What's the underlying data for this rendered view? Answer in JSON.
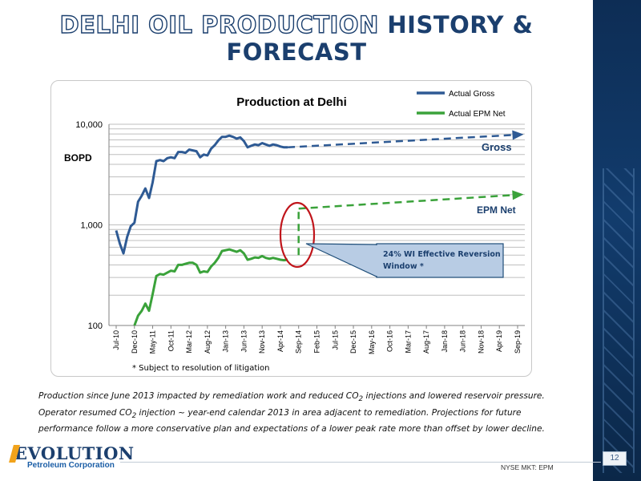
{
  "slide": {
    "title_part1": "DELHI OIL PRODUCTION",
    "title_part2": " HISTORY & FORECAST",
    "footnote": "* Subject to resolution of litigation",
    "caption_html": "Production since June 2013 impacted by remediation work and reduced CO<sub>2</sub> injections and lowered reservoir pressure. Operator resumed CO<sub>2</sub> injection ~ year-end calendar 2013 in area adjacent to remediation. Projections for future performance follow a more conservative plan and expectations of a lower peak rate more than offset by lower decline.",
    "logo_name": "EVOLUTION",
    "logo_sub": "Petroleum Corporation",
    "ticker": "NYSE MKT: EPM",
    "page_number": "12",
    "colors": {
      "title_navy": "#1b3f6e",
      "side_panel": "#123c6d",
      "logo_accent": "#f2a31b"
    }
  },
  "chart_data": {
    "type": "line",
    "title": "Production at Delhi",
    "ylabel": "BOPD",
    "yscale": "log",
    "ylim": [
      100,
      10000
    ],
    "yticks": [
      "100",
      "1,000",
      "10,000"
    ],
    "grid": true,
    "legend_position": "top-right",
    "x_tick_labels": [
      "Jul-10",
      "Dec-10",
      "May-11",
      "Oct-11",
      "Mar-12",
      "Aug-12",
      "Jan-13",
      "Jun-13",
      "Nov-13",
      "Apr-14",
      "Sep-14",
      "Feb-15",
      "Jul-15",
      "Dec-15",
      "May-16",
      "Oct-16",
      "Mar-17",
      "Aug-17",
      "Jan-18",
      "Jun-18",
      "Nov-18",
      "Apr-19",
      "Sep-19"
    ],
    "series": [
      {
        "name": "Actual Gross",
        "color": "#2e5a94",
        "x": [
          "Jul-10",
          "Aug-10",
          "Sep-10",
          "Oct-10",
          "Nov-10",
          "Dec-10",
          "Jan-11",
          "Feb-11",
          "Mar-11",
          "Apr-11",
          "May-11",
          "Jun-11",
          "Jul-11",
          "Aug-11",
          "Sep-11",
          "Oct-11",
          "Nov-11",
          "Dec-11",
          "Jan-12",
          "Feb-12",
          "Mar-12",
          "Apr-12",
          "May-12",
          "Jun-12",
          "Jul-12",
          "Aug-12",
          "Sep-12",
          "Oct-12",
          "Nov-12",
          "Dec-12",
          "Jan-13",
          "Feb-13",
          "Mar-13",
          "Apr-13",
          "May-13",
          "Jun-13",
          "Jul-13",
          "Aug-13",
          "Sep-13",
          "Oct-13",
          "Nov-13",
          "Dec-13",
          "Jan-14",
          "Feb-14",
          "Mar-14",
          "Apr-14",
          "May-14",
          "Jun-14"
        ],
        "values": [
          880,
          650,
          520,
          760,
          970,
          1050,
          1700,
          1950,
          2300,
          1850,
          2650,
          4300,
          4400,
          4300,
          4600,
          4700,
          4600,
          5300,
          5300,
          5200,
          5600,
          5500,
          5400,
          4700,
          5000,
          4900,
          5700,
          6200,
          6900,
          7500,
          7500,
          7700,
          7500,
          7200,
          7400,
          6800,
          5900,
          6100,
          6300,
          6200,
          6500,
          6300,
          6100,
          6300,
          6200,
          6000,
          5900,
          5900
        ]
      },
      {
        "name": "Actual EPM Net",
        "color": "#3aa23a",
        "x": [
          "Dec-10",
          "Jan-11",
          "Feb-11",
          "Mar-11",
          "Apr-11",
          "May-11",
          "Jun-11",
          "Jul-11",
          "Aug-11",
          "Sep-11",
          "Oct-11",
          "Nov-11",
          "Dec-11",
          "Jan-12",
          "Feb-12",
          "Mar-12",
          "Apr-12",
          "May-12",
          "Jun-12",
          "Jul-12",
          "Aug-12",
          "Sep-12",
          "Oct-12",
          "Nov-12",
          "Dec-12",
          "Jan-13",
          "Feb-13",
          "Mar-13",
          "Apr-13",
          "May-13",
          "Jun-13",
          "Jul-13",
          "Aug-13",
          "Sep-13",
          "Oct-13",
          "Nov-13",
          "Dec-13",
          "Jan-14",
          "Feb-14",
          "Mar-14",
          "Apr-14",
          "May-14",
          "Jun-14"
        ],
        "values": [
          100,
          125,
          140,
          165,
          140,
          205,
          310,
          325,
          320,
          335,
          350,
          345,
          400,
          400,
          410,
          420,
          420,
          400,
          335,
          345,
          340,
          385,
          420,
          470,
          550,
          560,
          570,
          555,
          540,
          560,
          520,
          450,
          460,
          475,
          470,
          490,
          470,
          460,
          470,
          460,
          450,
          445,
          450
        ]
      },
      {
        "name": "Gross forecast",
        "color": "#2e5a94",
        "dashed": true,
        "x": [
          "Jun-14",
          "Oct-19"
        ],
        "values": [
          5900,
          7900
        ]
      },
      {
        "name": "EPM Net forecast",
        "color": "#3aa23a",
        "dashed": true,
        "x": [
          "Sep-14",
          "Oct-19"
        ],
        "values": [
          1450,
          2000
        ]
      },
      {
        "name": "Reversion step",
        "color": "#3aa23a",
        "dashed": true,
        "x": [
          "Sep-14",
          "Sep-14"
        ],
        "values": [
          500,
          1450
        ]
      }
    ],
    "annotations": [
      {
        "text": "Gross",
        "color": "#1b3f6e"
      },
      {
        "text": "EPM Net",
        "color": "#1b3f6e"
      },
      {
        "text": "24% WI Effective Reversion Window *",
        "color": "#1b3f6e"
      }
    ]
  }
}
